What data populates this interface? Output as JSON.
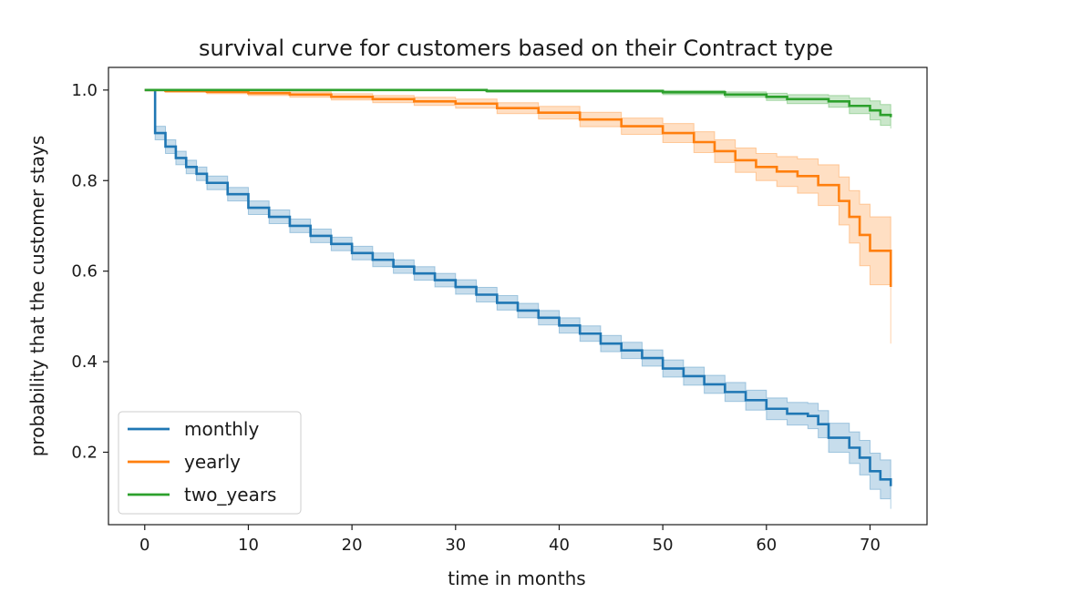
{
  "chart_data": {
    "type": "line",
    "title": "survival curve for customers based on their Contract type",
    "xlabel": "time in months",
    "ylabel": "probability that the customer stays",
    "xlim": [
      -3.5,
      75.5
    ],
    "ylim": [
      0.04,
      1.05
    ],
    "xticks": [
      0,
      10,
      20,
      30,
      40,
      50,
      60,
      70
    ],
    "yticks": [
      0.2,
      0.4,
      0.6,
      0.8,
      1.0
    ],
    "xtick_labels": [
      "0",
      "10",
      "20",
      "30",
      "40",
      "50",
      "60",
      "70"
    ],
    "ytick_labels": [
      "0.2",
      "0.4",
      "0.6",
      "0.8",
      "1.0"
    ],
    "legend_position": "lower-left",
    "grid": false,
    "series": [
      {
        "name": "monthly",
        "color": "#1f77b4",
        "x": [
          0,
          1,
          2,
          3,
          4,
          5,
          6,
          8,
          10,
          12,
          14,
          16,
          18,
          20,
          22,
          24,
          26,
          28,
          30,
          32,
          34,
          36,
          38,
          40,
          42,
          44,
          46,
          48,
          50,
          52,
          54,
          56,
          58,
          60,
          62,
          64,
          65,
          66,
          68,
          69,
          70,
          71,
          72
        ],
        "y": [
          1.0,
          0.905,
          0.875,
          0.85,
          0.83,
          0.815,
          0.795,
          0.77,
          0.74,
          0.72,
          0.7,
          0.678,
          0.66,
          0.64,
          0.625,
          0.61,
          0.595,
          0.58,
          0.565,
          0.548,
          0.53,
          0.513,
          0.497,
          0.48,
          0.462,
          0.44,
          0.425,
          0.408,
          0.385,
          0.368,
          0.35,
          0.333,
          0.315,
          0.296,
          0.285,
          0.28,
          0.262,
          0.232,
          0.21,
          0.188,
          0.158,
          0.14,
          0.125
        ],
        "ci_lower": [
          1.0,
          0.89,
          0.86,
          0.835,
          0.815,
          0.8,
          0.78,
          0.755,
          0.725,
          0.705,
          0.685,
          0.663,
          0.645,
          0.625,
          0.61,
          0.595,
          0.58,
          0.565,
          0.549,
          0.532,
          0.514,
          0.497,
          0.481,
          0.463,
          0.445,
          0.422,
          0.407,
          0.39,
          0.366,
          0.348,
          0.33,
          0.312,
          0.293,
          0.272,
          0.26,
          0.252,
          0.232,
          0.2,
          0.175,
          0.15,
          0.118,
          0.097,
          0.075
        ],
        "ci_upper": [
          1.0,
          0.92,
          0.89,
          0.865,
          0.845,
          0.83,
          0.81,
          0.785,
          0.755,
          0.735,
          0.715,
          0.693,
          0.675,
          0.655,
          0.64,
          0.625,
          0.61,
          0.595,
          0.581,
          0.564,
          0.546,
          0.529,
          0.513,
          0.497,
          0.479,
          0.458,
          0.443,
          0.426,
          0.404,
          0.388,
          0.37,
          0.354,
          0.337,
          0.32,
          0.31,
          0.308,
          0.292,
          0.264,
          0.245,
          0.226,
          0.198,
          0.183,
          0.175
        ]
      },
      {
        "name": "yearly",
        "color": "#ff7f0e",
        "x": [
          0,
          2,
          6,
          10,
          14,
          18,
          22,
          26,
          30,
          34,
          38,
          42,
          46,
          50,
          53,
          55,
          57,
          59,
          61,
          63,
          65,
          67,
          68,
          69,
          70,
          72
        ],
        "y": [
          1.0,
          0.998,
          0.996,
          0.993,
          0.99,
          0.985,
          0.98,
          0.975,
          0.97,
          0.96,
          0.95,
          0.935,
          0.92,
          0.905,
          0.885,
          0.865,
          0.845,
          0.83,
          0.82,
          0.81,
          0.79,
          0.755,
          0.72,
          0.68,
          0.645,
          0.565
        ],
        "ci_lower": [
          1.0,
          0.995,
          0.992,
          0.988,
          0.984,
          0.978,
          0.972,
          0.966,
          0.96,
          0.948,
          0.936,
          0.919,
          0.902,
          0.884,
          0.862,
          0.84,
          0.818,
          0.8,
          0.787,
          0.772,
          0.745,
          0.702,
          0.662,
          0.612,
          0.57,
          0.44
        ],
        "ci_upper": [
          1.0,
          1.0,
          1.0,
          0.998,
          0.996,
          0.992,
          0.988,
          0.984,
          0.98,
          0.972,
          0.964,
          0.951,
          0.938,
          0.926,
          0.908,
          0.89,
          0.872,
          0.86,
          0.853,
          0.848,
          0.835,
          0.808,
          0.778,
          0.748,
          0.72,
          0.69
        ]
      },
      {
        "name": "two_years",
        "color": "#2ca02c",
        "x": [
          0,
          33,
          50,
          56,
          60,
          62,
          66,
          68,
          70,
          71,
          72
        ],
        "y": [
          1.0,
          0.998,
          0.995,
          0.99,
          0.985,
          0.98,
          0.975,
          0.965,
          0.955,
          0.945,
          0.94
        ],
        "ci_lower": [
          1.0,
          0.995,
          0.99,
          0.984,
          0.977,
          0.97,
          0.962,
          0.948,
          0.934,
          0.922,
          0.915
        ],
        "ci_upper": [
          1.0,
          1.0,
          0.999,
          0.996,
          0.993,
          0.99,
          0.988,
          0.982,
          0.976,
          0.968,
          0.962
        ]
      }
    ]
  }
}
